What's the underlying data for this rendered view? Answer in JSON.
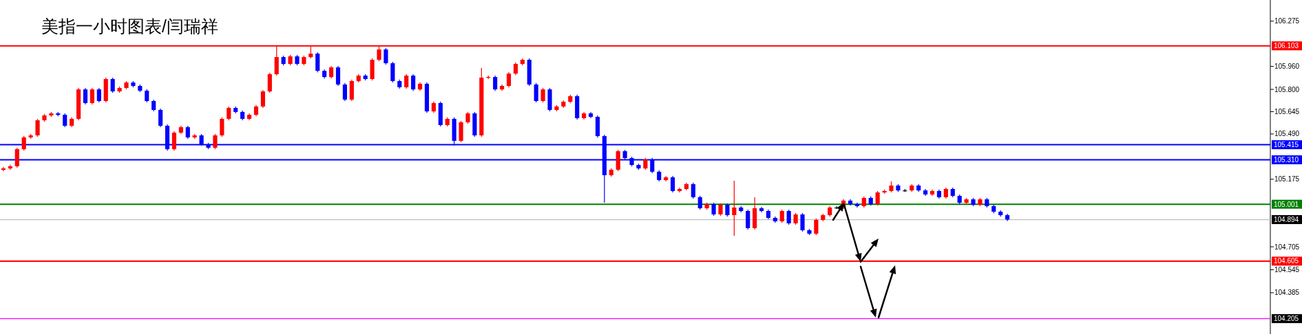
{
  "chart_data": {
    "type": "candlestick",
    "title": "美指一小时图表/闫瑞祥",
    "colors": [
      "#ff0000",
      "#ff0000",
      "#ff0000",
      "#ff0000",
      "#ff0000",
      "#ff0000",
      "#ff0000",
      "#ff0000",
      "#0000ff",
      "#0000ff",
      "#ff0000",
      "#ff0000",
      "#0000ff",
      "#ff0000",
      "#0000ff",
      "#ff0000",
      "#0000ff",
      "#ff0000",
      "#ff0000",
      "#0000ff",
      "#0000ff",
      "#0000ff",
      "#0000ff",
      "#0000ff",
      "#0000ff",
      "#ff0000",
      "#ff0000",
      "#0000ff",
      "#ff0000",
      "#0000ff",
      "#0000ff",
      "#ff0000",
      "#ff0000",
      "#ff0000",
      "#0000ff",
      "#0000ff",
      "#ff0000",
      "#ff0000",
      "#ff0000",
      "#ff0000",
      "#ff0000",
      "#0000ff",
      "#ff0000",
      "#0000ff",
      "#ff0000",
      "#ff0000",
      "#0000ff",
      "#0000ff",
      "#ff0000",
      "#0000ff",
      "#0000ff",
      "#ff0000",
      "#ff0000",
      "#0000ff",
      "#ff0000",
      "#ff0000",
      "#0000ff",
      "#0000ff",
      "#0000ff",
      "#ff0000",
      "#0000ff",
      "#ff0000",
      "#0000ff",
      "#ff0000",
      "#0000ff",
      "#ff0000",
      "#0000ff",
      "#ff0000",
      "#ff0000",
      "#0000ff",
      "#ff0000",
      "#ff0000",
      "#0000ff",
      "#ff0000",
      "#ff0000",
      "#ff0000",
      "#ff0000",
      "#0000ff",
      "#0000ff",
      "#ff0000",
      "#0000ff",
      "#ff0000",
      "#ff0000",
      "#ff0000",
      "#0000ff",
      "#ff0000",
      "#0000ff",
      "#0000ff",
      "#0000ff",
      "#ff0000",
      "#ff0000",
      "#0000ff",
      "#0000ff",
      "#0000ff",
      "#ff0000",
      "#0000ff",
      "#0000ff",
      "#ff0000",
      "#0000ff",
      "#ff0000",
      "#ff0000",
      "#0000ff",
      "#0000ff",
      "#ff0000",
      "#0000ff",
      "#ff0000",
      "#0000ff",
      "#ff0000",
      "#0000ff",
      "#0000ff",
      "#ff0000",
      "#0000ff",
      "#0000ff",
      "#0000ff",
      "#ff0000",
      "#0000ff",
      "#ff0000",
      "#0000ff",
      "#0000ff",
      "#ff0000",
      "#ff0000",
      "#ff0000",
      "#000000",
      "#ff0000",
      "#0000ff",
      "#0000ff",
      "#ff0000",
      "#0000ff",
      "#ff0000",
      "#ff0000",
      "#ff0000",
      "#0000ff",
      "#000000",
      "#ff0000",
      "#0000ff",
      "#0000ff",
      "#ff0000",
      "#0000ff",
      "#ff0000",
      "#0000ff",
      "#0000ff",
      "#ff0000",
      "#0000ff",
      "#ff0000",
      "#0000ff",
      "#0000ff",
      "#0000ff",
      "#0000ff",
      null,
      null,
      null,
      null,
      null,
      null,
      null,
      null,
      null,
      null,
      null,
      null,
      null,
      null,
      null,
      null,
      null,
      null,
      null,
      null,
      null,
      null,
      null,
      null,
      null,
      null,
      null,
      null,
      null,
      null,
      null,
      null,
      null,
      null,
      null,
      null,
      null,
      null
    ],
    "ylim": [
      104.098,
      106.422
    ],
    "yticks": [
      106.275,
      {
        "value": 105.96,
        "label": "105.960"
      },
      {
        "value": 105.8,
        "label": "105.800"
      },
      105.645,
      {
        "value": 105.49,
        "label": "105.490"
      },
      105.175,
      104.705,
      104.545,
      104.385
    ],
    "tick_labels": "y",
    "ref_lines": [
      {
        "axis": "y",
        "value": 106.103,
        "label": "106.103",
        "color": "#ff0000"
      },
      {
        "axis": "y",
        "value": 105.415,
        "label": "105.415",
        "color": "#0000ff"
      },
      {
        "axis": "y",
        "value": 105.31,
        "label": "105.310",
        "color": "#0000ff"
      },
      {
        "axis": "y",
        "value": 105.001,
        "label": "105.001",
        "color": "#008000"
      },
      {
        "axis": "y",
        "value": 104.894,
        "label": "104.894",
        "color": "#c0c0c0"
      },
      {
        "axis": "y",
        "value": 104.605,
        "label": "104.605",
        "color": "#ff0000"
      },
      {
        "axis": "y",
        "value": 104.205,
        "label": "104.205",
        "color": "#ff00ff"
      }
    ],
    "categories": [
      null,
      null,
      null,
      null,
      null,
      null,
      null,
      null,
      null,
      null,
      null,
      null,
      null,
      null,
      null,
      null,
      null,
      null,
      null,
      null,
      null,
      null,
      null,
      null,
      null,
      null,
      null,
      null,
      null,
      null,
      null,
      null,
      null,
      null,
      null,
      null,
      null,
      null,
      null,
      null,
      null,
      null,
      null,
      null,
      null,
      null,
      null,
      null,
      null,
      null,
      null,
      null,
      null,
      null,
      null,
      null,
      null,
      null,
      null,
      null,
      null,
      null,
      null,
      null,
      null,
      null,
      null,
      null,
      null,
      null,
      null,
      null,
      null,
      null,
      null,
      null,
      null,
      null,
      null,
      null,
      null,
      null,
      null,
      null,
      null,
      null,
      null,
      null,
      null,
      null,
      null,
      null,
      null,
      null,
      null,
      null,
      null,
      null,
      null,
      null,
      null,
      null,
      null,
      null,
      null,
      null,
      null,
      null,
      null,
      null,
      null,
      null,
      null,
      null,
      null,
      null,
      null,
      null,
      null,
      null,
      null,
      null,
      null,
      null,
      null,
      null,
      null,
      null,
      null,
      null,
      null,
      null,
      null,
      null,
      null,
      null,
      null,
      null,
      null,
      null,
      null,
      null,
      null,
      null,
      null,
      null,
      null,
      null,
      null,
      null,
      null,
      null,
      null,
      null,
      null,
      null,
      null,
      null,
      null,
      null,
      null,
      null,
      null,
      null,
      null,
      null,
      null,
      null,
      null,
      null,
      null,
      null,
      null,
      null,
      null,
      null,
      null,
      null,
      null,
      null,
      null,
      null,
      null,
      null,
      null,
      null
    ],
    "ohlc": [
      [
        105.24,
        105.26,
        105.23,
        105.25
      ],
      [
        105.25,
        105.275,
        105.24,
        105.265
      ],
      [
        105.265,
        105.394,
        105.255,
        105.384
      ],
      [
        105.384,
        105.476,
        105.374,
        105.466
      ],
      [
        105.466,
        105.49,
        105.456,
        105.48
      ],
      [
        105.48,
        105.595,
        105.47,
        105.585
      ],
      [
        105.585,
        105.629,
        105.575,
        105.619
      ],
      [
        105.619,
        105.643,
        105.609,
        105.633
      ],
      [
        105.633,
        105.643,
        105.613,
        105.623
      ],
      [
        105.623,
        105.633,
        105.537,
        105.547
      ],
      [
        105.547,
        105.605,
        105.537,
        105.595
      ],
      [
        105.595,
        105.81,
        105.585,
        105.8
      ],
      [
        105.8,
        105.81,
        105.695,
        105.705
      ],
      [
        105.705,
        105.81,
        105.695,
        105.8
      ],
      [
        105.8,
        105.81,
        105.709,
        105.719
      ],
      [
        105.719,
        105.882,
        105.709,
        105.872
      ],
      [
        105.872,
        105.882,
        105.776,
        105.786
      ],
      [
        105.786,
        105.82,
        105.776,
        105.81
      ],
      [
        105.81,
        105.858,
        105.8,
        105.848
      ],
      [
        105.848,
        105.858,
        105.814,
        105.824
      ],
      [
        105.824,
        105.834,
        105.781,
        105.791
      ],
      [
        105.791,
        105.801,
        105.709,
        105.719
      ],
      [
        105.719,
        105.729,
        105.647,
        105.657
      ],
      [
        105.657,
        105.667,
        105.537,
        105.547
      ],
      [
        105.547,
        105.557,
        105.374,
        105.384
      ],
      [
        105.384,
        105.509,
        105.374,
        105.499
      ],
      [
        105.499,
        105.547,
        105.489,
        105.537
      ],
      [
        105.537,
        105.547,
        105.456,
        105.466
      ],
      [
        105.466,
        105.49,
        105.456,
        105.48
      ],
      [
        105.48,
        105.49,
        105.408,
        105.418
      ],
      [
        105.418,
        105.428,
        105.384,
        105.394
      ],
      [
        105.394,
        105.49,
        105.384,
        105.48
      ],
      [
        105.48,
        105.605,
        105.47,
        105.595
      ],
      [
        105.595,
        105.681,
        105.585,
        105.671
      ],
      [
        105.671,
        105.681,
        105.633,
        105.643
      ],
      [
        105.643,
        105.653,
        105.585,
        105.595
      ],
      [
        105.595,
        105.633,
        105.585,
        105.623
      ],
      [
        105.623,
        105.691,
        105.613,
        105.681
      ],
      [
        105.681,
        105.796,
        105.671,
        105.786
      ],
      [
        105.786,
        105.916,
        105.776,
        105.906
      ],
      [
        105.906,
        106.103,
        105.896,
        106.025
      ],
      [
        106.025,
        106.035,
        105.967,
        105.977
      ],
      [
        105.977,
        106.04,
        105.967,
        106.03
      ],
      [
        106.03,
        106.04,
        105.967,
        105.977
      ],
      [
        105.977,
        106.035,
        105.967,
        106.025
      ],
      [
        106.025,
        106.1,
        106.015,
        106.049
      ],
      [
        106.049,
        106.059,
        105.919,
        105.929
      ],
      [
        105.929,
        105.939,
        105.876,
        105.886
      ],
      [
        105.886,
        105.963,
        105.876,
        105.953
      ],
      [
        105.953,
        105.963,
        105.824,
        105.834
      ],
      [
        105.834,
        105.844,
        105.719,
        105.729
      ],
      [
        105.729,
        105.868,
        105.719,
        105.858
      ],
      [
        105.858,
        105.906,
        105.848,
        105.896
      ],
      [
        105.896,
        105.906,
        105.862,
        105.872
      ],
      [
        105.872,
        106.016,
        105.862,
        106.006
      ],
      [
        106.006,
        106.1,
        105.996,
        106.078
      ],
      [
        106.078,
        106.088,
        105.972,
        105.982
      ],
      [
        105.982,
        105.992,
        105.848,
        105.858
      ],
      [
        105.858,
        105.868,
        105.805,
        105.815
      ],
      [
        105.815,
        105.906,
        105.805,
        105.896
      ],
      [
        105.896,
        105.906,
        105.79,
        105.8
      ],
      [
        105.8,
        105.849,
        105.79,
        105.839
      ],
      [
        105.839,
        105.849,
        105.637,
        105.647
      ],
      [
        105.647,
        105.715,
        105.637,
        105.705
      ],
      [
        105.705,
        105.715,
        105.542,
        105.552
      ],
      [
        105.552,
        105.605,
        105.542,
        105.595
      ],
      [
        105.595,
        105.605,
        105.41,
        105.442
      ],
      [
        105.442,
        105.581,
        105.432,
        105.571
      ],
      [
        105.571,
        105.643,
        105.561,
        105.633
      ],
      [
        105.633,
        105.643,
        105.47,
        105.48
      ],
      [
        105.48,
        105.95,
        105.47,
        105.882
      ],
      [
        105.882,
        105.896,
        105.872,
        105.886
      ],
      [
        105.886,
        105.896,
        105.79,
        105.8
      ],
      [
        105.8,
        105.834,
        105.79,
        105.824
      ],
      [
        105.824,
        105.92,
        105.814,
        105.91
      ],
      [
        105.91,
        105.987,
        105.9,
        105.977
      ],
      [
        105.977,
        106.016,
        105.967,
        106.006
      ],
      [
        106.006,
        106.016,
        105.824,
        105.834
      ],
      [
        105.834,
        105.844,
        105.709,
        105.719
      ],
      [
        105.719,
        105.81,
        105.709,
        105.8
      ],
      [
        105.8,
        105.81,
        105.647,
        105.657
      ],
      [
        105.657,
        105.691,
        105.647,
        105.681
      ],
      [
        105.681,
        105.724,
        105.671,
        105.714
      ],
      [
        105.714,
        105.763,
        105.704,
        105.753
      ],
      [
        105.753,
        105.763,
        105.59,
        105.6
      ],
      [
        105.6,
        105.643,
        105.59,
        105.633
      ],
      [
        105.633,
        105.643,
        105.599,
        105.609
      ],
      [
        105.609,
        105.619,
        105.465,
        105.475
      ],
      [
        105.475,
        105.485,
        105.011,
        105.203
      ],
      [
        105.203,
        105.251,
        105.193,
        105.241
      ],
      [
        105.241,
        105.38,
        105.231,
        105.37
      ],
      [
        105.37,
        105.38,
        105.312,
        105.322
      ],
      [
        105.322,
        105.332,
        105.264,
        105.274
      ],
      [
        105.274,
        105.284,
        105.24,
        105.25
      ],
      [
        105.25,
        105.323,
        105.24,
        105.313
      ],
      [
        105.313,
        105.323,
        105.217,
        105.227
      ],
      [
        105.227,
        105.237,
        105.159,
        105.169
      ],
      [
        105.169,
        105.198,
        105.159,
        105.188
      ],
      [
        105.188,
        105.198,
        105.083,
        105.093
      ],
      [
        105.093,
        105.117,
        105.083,
        105.107
      ],
      [
        105.107,
        105.151,
        105.097,
        105.141
      ],
      [
        105.141,
        105.151,
        105.04,
        105.05
      ],
      [
        105.05,
        105.06,
        104.963,
        104.973
      ],
      [
        104.973,
        105.012,
        104.963,
        105.002
      ],
      [
        105.002,
        105.012,
        104.92,
        104.93
      ],
      [
        104.93,
        105.007,
        104.92,
        104.997
      ],
      [
        104.997,
        105.007,
        104.915,
        104.925
      ],
      [
        104.925,
        105.164,
        104.782,
        104.978
      ],
      [
        104.978,
        104.988,
        104.944,
        104.954
      ],
      [
        104.954,
        104.964,
        104.825,
        104.835
      ],
      [
        104.835,
        105.05,
        104.825,
        104.973
      ],
      [
        104.973,
        104.983,
        104.944,
        104.954
      ],
      [
        104.954,
        104.964,
        104.896,
        104.906
      ],
      [
        104.906,
        104.916,
        104.872,
        104.882
      ],
      [
        104.882,
        104.964,
        104.872,
        104.954
      ],
      [
        104.954,
        104.964,
        104.858,
        104.868
      ],
      [
        104.868,
        104.94,
        104.858,
        104.93
      ],
      [
        104.93,
        104.94,
        104.81,
        104.82
      ],
      [
        104.82,
        104.83,
        104.786,
        104.796
      ],
      [
        104.796,
        104.902,
        104.786,
        104.892
      ],
      [
        104.892,
        104.935,
        104.882,
        104.925
      ],
      [
        104.925,
        104.988,
        104.915,
        104.978
      ],
      [
        104.978,
        104.988,
        104.968,
        104.978
      ],
      [
        104.978,
        105.036,
        104.968,
        105.026
      ],
      [
        105.026,
        105.036,
        104.992,
        105.002
      ],
      [
        105.002,
        105.012,
        104.978,
        104.988
      ],
      [
        104.988,
        105.055,
        104.978,
        105.045
      ],
      [
        105.045,
        105.055,
        104.992,
        105.002
      ],
      [
        105.002,
        105.093,
        104.992,
        105.083
      ],
      [
        105.083,
        105.103,
        105.073,
        105.093
      ],
      [
        105.093,
        105.16,
        105.083,
        105.131
      ],
      [
        105.131,
        105.141,
        105.087,
        105.097
      ],
      [
        105.097,
        105.107,
        105.087,
        105.097
      ],
      [
        105.097,
        105.141,
        105.087,
        105.131
      ],
      [
        105.131,
        105.141,
        105.087,
        105.097
      ],
      [
        105.097,
        105.107,
        105.059,
        105.069
      ],
      [
        105.069,
        105.103,
        105.059,
        105.093
      ],
      [
        105.093,
        105.103,
        105.04,
        105.05
      ],
      [
        105.05,
        105.117,
        105.04,
        105.107
      ],
      [
        105.107,
        105.117,
        105.049,
        105.059
      ],
      [
        105.059,
        105.069,
        105.001,
        105.011
      ],
      [
        105.011,
        105.045,
        105.001,
        105.035
      ],
      [
        105.035,
        105.045,
        104.987,
        104.997
      ],
      [
        104.997,
        105.045,
        104.987,
        105.035
      ],
      [
        105.035,
        105.045,
        104.978,
        104.988
      ],
      [
        104.988,
        104.998,
        104.939,
        104.949
      ],
      [
        104.949,
        104.959,
        104.915,
        104.925
      ],
      [
        104.925,
        104.935,
        104.884,
        104.894
      ],
      null,
      null,
      null,
      null,
      null,
      null,
      null,
      null,
      null,
      null,
      null,
      null,
      null,
      null,
      null,
      null,
      null,
      null,
      null,
      null,
      null,
      null,
      null,
      null,
      null,
      null,
      null,
      null,
      null,
      null,
      null,
      null,
      null,
      null,
      null,
      null,
      null,
      null
    ]
  }
}
